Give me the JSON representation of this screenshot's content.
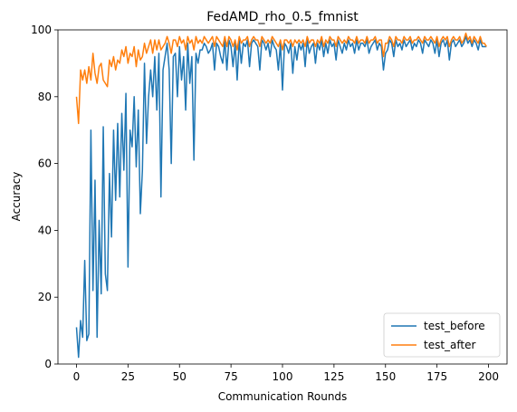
{
  "chart_data": {
    "type": "line",
    "title": "FedAMD_rho_0.5_fmnist",
    "xlabel": "Communication Rounds",
    "ylabel": "Accuracy",
    "xlim": [
      -9,
      209
    ],
    "ylim": [
      0,
      100
    ],
    "xticks": [
      0,
      25,
      50,
      75,
      100,
      125,
      150,
      175,
      200
    ],
    "yticks": [
      0,
      20,
      40,
      60,
      80,
      100
    ],
    "legend_position": "lower right",
    "grid": false,
    "series": [
      {
        "name": "test_before",
        "color": "#1f77b4",
        "x": [
          0,
          1,
          2,
          3,
          4,
          5,
          6,
          7,
          8,
          9,
          10,
          11,
          12,
          13,
          14,
          15,
          16,
          17,
          18,
          19,
          20,
          21,
          22,
          23,
          24,
          25,
          26,
          27,
          28,
          29,
          30,
          31,
          32,
          33,
          34,
          35,
          36,
          37,
          38,
          39,
          40,
          41,
          42,
          43,
          44,
          45,
          46,
          47,
          48,
          49,
          50,
          51,
          52,
          53,
          54,
          55,
          56,
          57,
          58,
          59,
          60,
          61,
          62,
          63,
          64,
          65,
          66,
          67,
          68,
          69,
          70,
          71,
          72,
          73,
          74,
          75,
          76,
          77,
          78,
          79,
          80,
          81,
          82,
          83,
          84,
          85,
          86,
          87,
          88,
          89,
          90,
          91,
          92,
          93,
          94,
          95,
          96,
          97,
          98,
          99,
          100,
          101,
          102,
          103,
          104,
          105,
          106,
          107,
          108,
          109,
          110,
          111,
          112,
          113,
          114,
          115,
          116,
          117,
          118,
          119,
          120,
          121,
          122,
          123,
          124,
          125,
          126,
          127,
          128,
          129,
          130,
          131,
          132,
          133,
          134,
          135,
          136,
          137,
          138,
          139,
          140,
          141,
          142,
          143,
          144,
          145,
          146,
          147,
          148,
          149,
          150,
          151,
          152,
          153,
          154,
          155,
          156,
          157,
          158,
          159,
          160,
          161,
          162,
          163,
          164,
          165,
          166,
          167,
          168,
          169,
          170,
          171,
          172,
          173,
          174,
          175,
          176,
          177,
          178,
          179,
          180,
          181,
          182,
          183,
          184,
          185,
          186,
          187,
          188,
          189,
          190,
          191,
          192,
          193,
          194,
          195,
          196,
          197,
          198,
          199
        ],
        "y": [
          11,
          2,
          13,
          8,
          31,
          7,
          9,
          70,
          22,
          55,
          8,
          43,
          21,
          71,
          27,
          22,
          57,
          38,
          70,
          49,
          72,
          50,
          75,
          58,
          81,
          29,
          70,
          65,
          80,
          59,
          76,
          45,
          58,
          90,
          66,
          80,
          88,
          80,
          92,
          76,
          93,
          50,
          88,
          92,
          96,
          88,
          60,
          92,
          93,
          80,
          95,
          85,
          92,
          76,
          96,
          84,
          92,
          61,
          93,
          90,
          94,
          94,
          96,
          95,
          93,
          94,
          96,
          88,
          96,
          95,
          92,
          90,
          97,
          88,
          97,
          95,
          89,
          96,
          85,
          97,
          90,
          96,
          95,
          97,
          89,
          96,
          97,
          96,
          95,
          88,
          97,
          96,
          94,
          96,
          92,
          97,
          95,
          94,
          88,
          96,
          82,
          96,
          95,
          93,
          96,
          87,
          95,
          91,
          96,
          94,
          96,
          89,
          97,
          93,
          95,
          96,
          90,
          96,
          94,
          97,
          92,
          96,
          93,
          97,
          95,
          96,
          91,
          97,
          95,
          93,
          96,
          94,
          97,
          95,
          96,
          93,
          97,
          94,
          96,
          96,
          95,
          97,
          93,
          95,
          96,
          97,
          94,
          96,
          95,
          88,
          93,
          94,
          97,
          96,
          92,
          97,
          95,
          96,
          94,
          97,
          95,
          96,
          97,
          94,
          96,
          95,
          97,
          96,
          93,
          97,
          96,
          95,
          97,
          96,
          93,
          97,
          92,
          96,
          97,
          95,
          97,
          91,
          96,
          97,
          95,
          96,
          97,
          95,
          96,
          98,
          96,
          97,
          95,
          97,
          96,
          94,
          97,
          95,
          95,
          95
        ]
      },
      {
        "name": "test_after",
        "color": "#ff7f0e",
        "x": [
          0,
          1,
          2,
          3,
          4,
          5,
          6,
          7,
          8,
          9,
          10,
          11,
          12,
          13,
          14,
          15,
          16,
          17,
          18,
          19,
          20,
          21,
          22,
          23,
          24,
          25,
          26,
          27,
          28,
          29,
          30,
          31,
          32,
          33,
          34,
          35,
          36,
          37,
          38,
          39,
          40,
          41,
          42,
          43,
          44,
          45,
          46,
          47,
          48,
          49,
          50,
          51,
          52,
          53,
          54,
          55,
          56,
          57,
          58,
          59,
          60,
          61,
          62,
          63,
          64,
          65,
          66,
          67,
          68,
          69,
          70,
          71,
          72,
          73,
          74,
          75,
          76,
          77,
          78,
          79,
          80,
          81,
          82,
          83,
          84,
          85,
          86,
          87,
          88,
          89,
          90,
          91,
          92,
          93,
          94,
          95,
          96,
          97,
          98,
          99,
          100,
          101,
          102,
          103,
          104,
          105,
          106,
          107,
          108,
          109,
          110,
          111,
          112,
          113,
          114,
          115,
          116,
          117,
          118,
          119,
          120,
          121,
          122,
          123,
          124,
          125,
          126,
          127,
          128,
          129,
          130,
          131,
          132,
          133,
          134,
          135,
          136,
          137,
          138,
          139,
          140,
          141,
          142,
          143,
          144,
          145,
          146,
          147,
          148,
          149,
          150,
          151,
          152,
          153,
          154,
          155,
          156,
          157,
          158,
          159,
          160,
          161,
          162,
          163,
          164,
          165,
          166,
          167,
          168,
          169,
          170,
          171,
          172,
          173,
          174,
          175,
          176,
          177,
          178,
          179,
          180,
          181,
          182,
          183,
          184,
          185,
          186,
          187,
          188,
          189,
          190,
          191,
          192,
          193,
          194,
          195,
          196,
          197,
          198,
          199
        ],
        "y": [
          80,
          72,
          88,
          85,
          88,
          84,
          89,
          85,
          93,
          87,
          84,
          89,
          90,
          85,
          84,
          83,
          91,
          89,
          92,
          88,
          91,
          90,
          94,
          92,
          95,
          90,
          93,
          92,
          95,
          89,
          94,
          91,
          92,
          96,
          93,
          95,
          97,
          93,
          97,
          94,
          97,
          94,
          95,
          96,
          98,
          96,
          93,
          97,
          97,
          95,
          98,
          96,
          97,
          94,
          98,
          96,
          97,
          94,
          98,
          96,
          97,
          96,
          98,
          97,
          96,
          97,
          98,
          95,
          98,
          97,
          96,
          95,
          98,
          95,
          98,
          97,
          95,
          97,
          94,
          98,
          96,
          97,
          97,
          98,
          95,
          97,
          98,
          97,
          97,
          95,
          98,
          97,
          96,
          97,
          96,
          98,
          97,
          96,
          95,
          97,
          94,
          97,
          97,
          96,
          97,
          95,
          97,
          96,
          97,
          96,
          97,
          95,
          98,
          96,
          97,
          97,
          95,
          97,
          96,
          98,
          95,
          97,
          96,
          98,
          97,
          97,
          95,
          98,
          97,
          96,
          97,
          96,
          98,
          97,
          97,
          96,
          98,
          96,
          97,
          97,
          96,
          98,
          96,
          97,
          97,
          98,
          96,
          97,
          97,
          92,
          96,
          96,
          98,
          97,
          95,
          98,
          97,
          97,
          96,
          98,
          97,
          97,
          98,
          96,
          97,
          97,
          98,
          97,
          96,
          98,
          97,
          97,
          98,
          97,
          96,
          98,
          95,
          97,
          98,
          97,
          98,
          95,
          97,
          98,
          97,
          97,
          98,
          96,
          97,
          99,
          97,
          98,
          96,
          98,
          97,
          96,
          98,
          96,
          96,
          95
        ]
      }
    ]
  }
}
